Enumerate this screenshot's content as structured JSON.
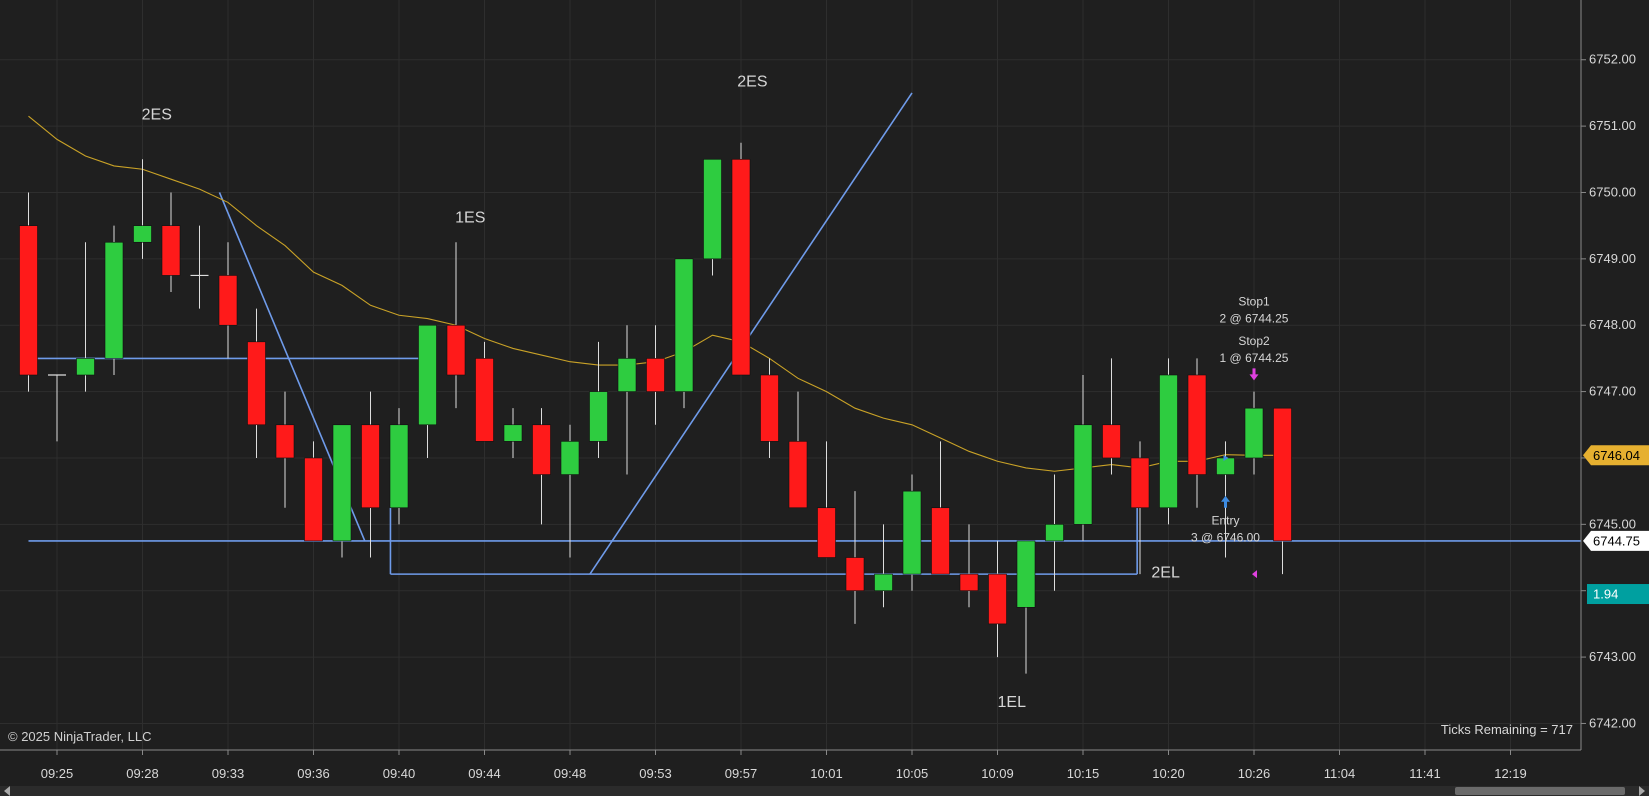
{
  "footer": {
    "copyright": "© 2025 NinjaTrader, LLC",
    "ticks_remaining": "Ticks Remaining = 717"
  },
  "colors": {
    "background": "#1f1f1f",
    "up_candle": "#2ecc40",
    "down_candle": "#ff1a1a",
    "wick": "#dddddd",
    "trendline": "#6f9bea",
    "ema": "#c9a227",
    "marker": "#e040e0",
    "entry_arrow": "#3d8be0",
    "price_label": "#ffffff",
    "ema_label": "#e6b030",
    "indicator_label": "#00a0a0"
  },
  "chart_data": {
    "type": "candlestick",
    "y_axis": {
      "range": [
        6741.6,
        6752.9
      ],
      "ticks": [
        "6742.00",
        "6743.00",
        "6744.00",
        "6745.00",
        "6746.00",
        "6747.00",
        "6748.00",
        "6749.00",
        "6750.00",
        "6751.00",
        "6752.00"
      ]
    },
    "x_axis": {
      "labels": [
        "09:25",
        "09:28",
        "09:33",
        "09:36",
        "09:40",
        "09:44",
        "09:48",
        "09:53",
        "09:57",
        "10:01",
        "10:05",
        "10:09",
        "10:15",
        "10:20",
        "10:26",
        "11:04",
        "11:41",
        "12:19"
      ],
      "label_bar_index": [
        1,
        4,
        7,
        10,
        13,
        16,
        19,
        22,
        25,
        28,
        31,
        34,
        37,
        40,
        43,
        46,
        49,
        52
      ]
    },
    "candles": [
      {
        "o": 6749.5,
        "h": 6750.0,
        "l": 6747.0,
        "c": 6747.25
      },
      {
        "o": 6747.25,
        "h": 6747.25,
        "l": 6746.25,
        "c": 6747.25
      },
      {
        "o": 6747.25,
        "h": 6749.25,
        "l": 6747.0,
        "c": 6747.5
      },
      {
        "o": 6747.5,
        "h": 6749.5,
        "l": 6747.25,
        "c": 6749.25
      },
      {
        "o": 6749.25,
        "h": 6750.5,
        "l": 6749.0,
        "c": 6749.5
      },
      {
        "o": 6749.5,
        "h": 6750.0,
        "l": 6748.5,
        "c": 6748.75
      },
      {
        "o": 6748.75,
        "h": 6749.5,
        "l": 6748.25,
        "c": 6748.75
      },
      {
        "o": 6748.75,
        "h": 6749.25,
        "l": 6747.5,
        "c": 6748.0
      },
      {
        "o": 6747.75,
        "h": 6748.25,
        "l": 6746.0,
        "c": 6746.5
      },
      {
        "o": 6746.5,
        "h": 6747.0,
        "l": 6745.25,
        "c": 6746.0
      },
      {
        "o": 6746.0,
        "h": 6746.25,
        "l": 6744.75,
        "c": 6744.75
      },
      {
        "o": 6744.75,
        "h": 6746.5,
        "l": 6744.5,
        "c": 6746.5
      },
      {
        "o": 6746.5,
        "h": 6747.0,
        "l": 6744.5,
        "c": 6745.25
      },
      {
        "o": 6745.25,
        "h": 6746.75,
        "l": 6745.0,
        "c": 6746.5
      },
      {
        "o": 6746.5,
        "h": 6748.0,
        "l": 6746.0,
        "c": 6748.0
      },
      {
        "o": 6748.0,
        "h": 6749.25,
        "l": 6746.75,
        "c": 6747.25
      },
      {
        "o": 6747.5,
        "h": 6747.75,
        "l": 6746.25,
        "c": 6746.25
      },
      {
        "o": 6746.25,
        "h": 6746.75,
        "l": 6746.0,
        "c": 6746.5
      },
      {
        "o": 6746.5,
        "h": 6746.75,
        "l": 6745.0,
        "c": 6745.75
      },
      {
        "o": 6745.75,
        "h": 6746.5,
        "l": 6744.5,
        "c": 6746.25
      },
      {
        "o": 6746.25,
        "h": 6747.75,
        "l": 6746.0,
        "c": 6747.0
      },
      {
        "o": 6747.0,
        "h": 6748.0,
        "l": 6745.75,
        "c": 6747.5
      },
      {
        "o": 6747.5,
        "h": 6748.0,
        "l": 6746.5,
        "c": 6747.0
      },
      {
        "o": 6747.0,
        "h": 6749.0,
        "l": 6746.75,
        "c": 6749.0
      },
      {
        "o": 6749.0,
        "h": 6750.5,
        "l": 6748.75,
        "c": 6750.5
      },
      {
        "o": 6750.5,
        "h": 6750.75,
        "l": 6747.25,
        "c": 6747.25
      },
      {
        "o": 6747.25,
        "h": 6747.5,
        "l": 6746.0,
        "c": 6746.25
      },
      {
        "o": 6746.25,
        "h": 6747.0,
        "l": 6745.25,
        "c": 6745.25
      },
      {
        "o": 6745.25,
        "h": 6746.25,
        "l": 6744.5,
        "c": 6744.5
      },
      {
        "o": 6744.5,
        "h": 6745.5,
        "l": 6743.5,
        "c": 6744.0
      },
      {
        "o": 6744.0,
        "h": 6745.0,
        "l": 6743.75,
        "c": 6744.25
      },
      {
        "o": 6744.25,
        "h": 6745.75,
        "l": 6744.0,
        "c": 6745.5
      },
      {
        "o": 6745.25,
        "h": 6746.25,
        "l": 6744.25,
        "c": 6744.25
      },
      {
        "o": 6744.25,
        "h": 6745.0,
        "l": 6743.75,
        "c": 6744.0
      },
      {
        "o": 6744.25,
        "h": 6744.75,
        "l": 6743.0,
        "c": 6743.5
      },
      {
        "o": 6743.75,
        "h": 6744.75,
        "l": 6742.75,
        "c": 6744.75
      },
      {
        "o": 6744.75,
        "h": 6745.75,
        "l": 6744.0,
        "c": 6745.0
      },
      {
        "o": 6745.0,
        "h": 6747.25,
        "l": 6744.75,
        "c": 6746.5
      },
      {
        "o": 6746.5,
        "h": 6747.5,
        "l": 6745.75,
        "c": 6746.0
      },
      {
        "o": 6746.0,
        "h": 6746.25,
        "l": 6744.25,
        "c": 6745.25
      },
      {
        "o": 6745.25,
        "h": 6747.5,
        "l": 6745.0,
        "c": 6747.25
      },
      {
        "o": 6747.25,
        "h": 6747.5,
        "l": 6745.25,
        "c": 6745.75
      },
      {
        "o": 6745.75,
        "h": 6746.25,
        "l": 6744.5,
        "c": 6746.0
      },
      {
        "o": 6746.0,
        "h": 6747.0,
        "l": 6745.75,
        "c": 6746.75
      },
      {
        "o": 6746.75,
        "h": 6746.75,
        "l": 6744.25,
        "c": 6744.75
      }
    ],
    "ema": [
      6751.15,
      6750.8,
      6750.55,
      6750.4,
      6750.35,
      6750.2,
      6750.05,
      6749.85,
      6749.5,
      6749.2,
      6748.8,
      6748.6,
      6748.3,
      6748.15,
      6748.1,
      6748.0,
      6747.8,
      6747.65,
      6747.55,
      6747.45,
      6747.4,
      6747.4,
      6747.45,
      6747.6,
      6747.85,
      6747.75,
      6747.5,
      6747.2,
      6747.0,
      6746.75,
      6746.6,
      6746.5,
      6746.3,
      6746.1,
      6745.95,
      6745.85,
      6745.8,
      6745.85,
      6745.9,
      6745.85,
      6745.95,
      6745.95,
      6746.05,
      6746.04,
      6746.04
    ],
    "lines": [
      {
        "x1": 0,
        "y1": 6747.5,
        "x2": 14,
        "y2": 6747.5
      },
      {
        "x1": 0,
        "y1": 6744.75,
        "x2": 56,
        "y2": 6744.75
      },
      {
        "x1": 6.7,
        "y1": 6750.0,
        "x2": 11.8,
        "y2": 6744.75
      },
      {
        "x1": 12.7,
        "y1": 6744.25,
        "x2": 38.9,
        "y2": 6744.25
      },
      {
        "x1": 12.7,
        "y1": 6744.25,
        "x2": 12.7,
        "y2": 6745.25
      },
      {
        "x1": 19.7,
        "y1": 6744.25,
        "x2": 31.0,
        "y2": 6751.5
      },
      {
        "x1": 38.9,
        "y1": 6744.25,
        "x2": 38.9,
        "y2": 6745.25
      }
    ],
    "signals": [
      {
        "text": "2ES",
        "bar": 4.5,
        "price": 6751.1
      },
      {
        "text": "1ES",
        "bar": 15.5,
        "price": 6749.55
      },
      {
        "text": "2ES",
        "bar": 25.4,
        "price": 6751.6
      },
      {
        "text": "2EL",
        "bar": 39.9,
        "price": 6744.2
      },
      {
        "text": "1EL",
        "bar": 34.5,
        "price": 6742.25
      }
    ],
    "orders": [
      {
        "title": "Stop1",
        "detail": "2 @ 6744.25",
        "bar": 43.0,
        "price": 6748.3
      },
      {
        "title": "Stop2",
        "detail": "1 @ 6744.25",
        "bar": 43.0,
        "price": 6747.7
      },
      {
        "title": "Entry",
        "detail": "3 @ 6746.00",
        "bar": 42.0,
        "price": 6745.0
      }
    ],
    "price_labels": [
      {
        "text": "6746.04",
        "price": 6746.04,
        "kind": "ema"
      },
      {
        "text": "6744.75",
        "price": 6744.75,
        "kind": "price"
      },
      {
        "text": "1.94",
        "price": 6743.95,
        "kind": "indicator"
      }
    ]
  }
}
